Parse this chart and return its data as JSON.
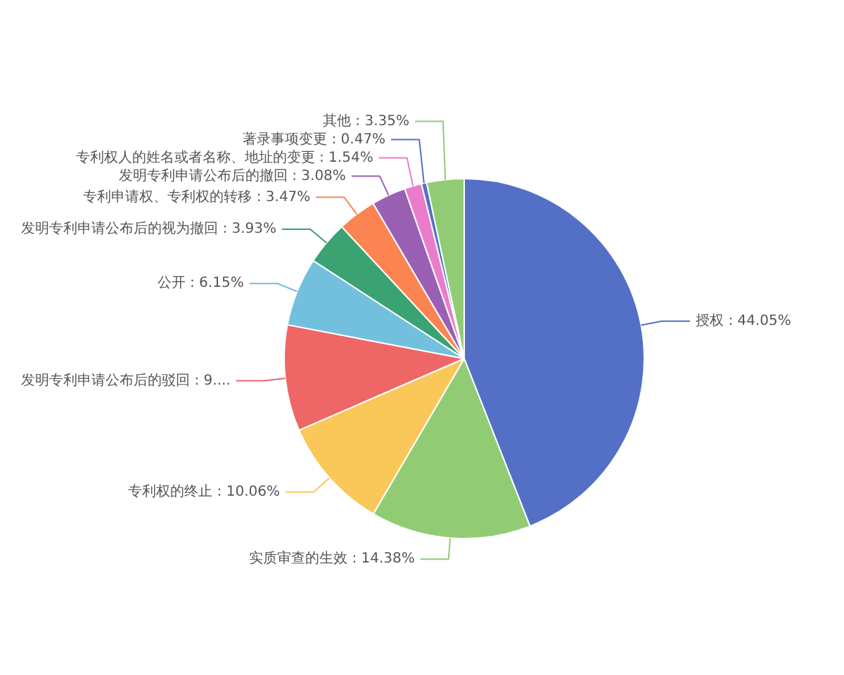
{
  "chart_data": {
    "type": "pie",
    "categories": [
      "授权",
      "实质审查的生效",
      "专利权的终止",
      "发明专利申请公布后的驳回",
      "公开",
      "发明专利申请公布后的视为撤回",
      "专利申请权、专利权的转移",
      "发明专利申请公布后的撤回",
      "专利权人的姓名或者名称、地址的变更",
      "著录事项变更",
      "其他"
    ],
    "values": [
      44.05,
      14.38,
      10.06,
      9.52,
      6.15,
      3.93,
      3.47,
      3.08,
      1.54,
      0.47,
      3.35
    ],
    "colors": [
      "#5470c6",
      "#91cc75",
      "#fac858",
      "#ee6666",
      "#73c0de",
      "#3ba272",
      "#fc8452",
      "#9a60b4",
      "#ea7ccc",
      "#5470c6",
      "#91cc75"
    ],
    "value_labels": [
      "44.05%",
      "14.38%",
      "10.06%",
      "9....",
      "6.15%",
      "3.93%",
      "3.47%",
      "3.08%",
      "1.54%",
      "0.47%",
      "3.35%"
    ],
    "legend": false
  }
}
